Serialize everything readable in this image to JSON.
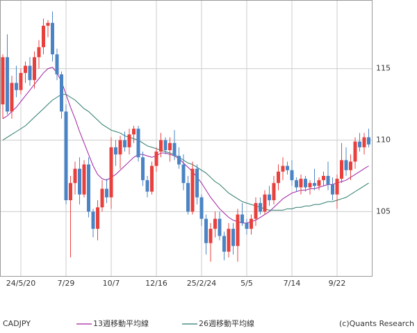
{
  "chart_data": {
    "type": "candlestick",
    "label": "CADJPY",
    "credit": "(c)Quants Research",
    "categories": [
      null,
      null,
      null,
      null,
      "24/5/20",
      null,
      null,
      null,
      null,
      null,
      null,
      null,
      null,
      null,
      "7/29",
      null,
      null,
      null,
      null,
      null,
      null,
      null,
      null,
      null,
      "10/7",
      null,
      null,
      null,
      null,
      null,
      null,
      null,
      null,
      null,
      "12/16",
      null,
      null,
      null,
      null,
      null,
      null,
      null,
      null,
      null,
      "25/2/24",
      null,
      null,
      null,
      null,
      null,
      null,
      null,
      null,
      null,
      "5/5",
      null,
      null,
      null,
      null,
      null,
      null,
      null,
      null,
      null,
      "7/14",
      null,
      null,
      null,
      null,
      null,
      null,
      null,
      null,
      null,
      "9/22",
      null,
      null,
      null,
      null,
      null,
      null,
      null
    ],
    "open": [
      112.5,
      115.8,
      112.0,
      114.0,
      113.5,
      114.7,
      115.2,
      114.2,
      115.8,
      116.5,
      118.0,
      118.2,
      116.0,
      114.6,
      112.0,
      105.8,
      107.0,
      108.0,
      106.2,
      108.3,
      105.0,
      103.8,
      105.3,
      106.6,
      106.0,
      109.5,
      109.0,
      110.0,
      109.5,
      110.4,
      110.8,
      108.8,
      107.2,
      106.4,
      108.2,
      109.2,
      110.0,
      109.3,
      109.8,
      108.9,
      108.3,
      107.0,
      105.0,
      108.0,
      106.0,
      104.5,
      102.8,
      103.8,
      104.5,
      103.3,
      102.2,
      103.8,
      102.6,
      104.8,
      104.2,
      103.8,
      104.5,
      105.6,
      105.0,
      106.2,
      105.8,
      107.0,
      107.8,
      108.2,
      107.9,
      107.2,
      106.7,
      107.3,
      106.7,
      107.0,
      106.8,
      107.2,
      107.5,
      106.9,
      106.2,
      107.3,
      108.6,
      107.9,
      108.5,
      109.9,
      109.5,
      110.2
    ],
    "high": [
      116.0,
      117.4,
      114.5,
      115.2,
      115.0,
      115.5,
      115.8,
      116.2,
      117.0,
      118.5,
      118.4,
      119.0,
      116.4,
      114.8,
      112.5,
      107.5,
      108.5,
      108.8,
      108.6,
      108.8,
      105.2,
      105.8,
      107.2,
      107.3,
      110.2,
      110.0,
      110.3,
      110.6,
      110.8,
      111.0,
      111.0,
      109.2,
      107.5,
      108.5,
      109.5,
      110.5,
      110.2,
      110.2,
      110.7,
      109.5,
      109.0,
      107.5,
      108.5,
      108.3,
      106.2,
      104.8,
      104.2,
      105.0,
      105.0,
      103.6,
      104.2,
      104.2,
      105.2,
      105.6,
      104.5,
      104.8,
      106.0,
      106.0,
      106.5,
      106.8,
      107.5,
      108.3,
      108.8,
      108.5,
      108.6,
      107.4,
      107.6,
      107.5,
      107.2,
      108.0,
      107.4,
      107.8,
      108.5,
      107.4,
      107.6,
      109.8,
      109.5,
      109.0,
      110.2,
      110.5,
      110.5,
      110.8
    ],
    "low": [
      111.5,
      111.8,
      111.5,
      113.0,
      113.2,
      114.0,
      113.8,
      113.6,
      115.0,
      116.0,
      117.2,
      115.5,
      114.2,
      111.5,
      105.5,
      101.8,
      106.2,
      105.5,
      106.0,
      104.6,
      103.2,
      103.0,
      105.0,
      105.6,
      105.2,
      108.2,
      108.0,
      109.2,
      109.0,
      109.8,
      108.5,
      106.8,
      106.0,
      106.2,
      107.8,
      108.8,
      109.0,
      108.5,
      108.6,
      108.0,
      106.5,
      104.8,
      104.8,
      105.5,
      104.0,
      102.0,
      101.5,
      103.2,
      103.0,
      101.6,
      101.8,
      102.0,
      101.5,
      104.0,
      103.4,
      103.4,
      104.0,
      104.8,
      104.8,
      105.4,
      105.5,
      106.5,
      107.2,
      107.6,
      106.8,
      106.4,
      106.2,
      106.4,
      106.2,
      106.5,
      106.5,
      106.8,
      106.5,
      105.8,
      105.2,
      107.0,
      107.5,
      107.2,
      108.0,
      109.2,
      109.0,
      109.5
    ],
    "close": [
      115.8,
      112.0,
      114.0,
      113.5,
      114.7,
      115.2,
      114.2,
      115.8,
      116.5,
      118.0,
      118.2,
      116.0,
      114.6,
      112.0,
      105.8,
      107.0,
      108.0,
      106.2,
      108.3,
      105.0,
      103.8,
      105.3,
      106.6,
      106.0,
      109.5,
      109.0,
      110.0,
      109.5,
      110.4,
      110.8,
      108.8,
      107.2,
      106.4,
      108.2,
      109.2,
      110.0,
      109.3,
      109.8,
      108.9,
      108.3,
      107.0,
      105.0,
      108.0,
      106.0,
      104.5,
      102.8,
      103.8,
      104.5,
      103.3,
      102.2,
      103.8,
      102.6,
      104.8,
      104.2,
      103.8,
      104.5,
      105.6,
      105.0,
      106.2,
      105.8,
      107.0,
      107.8,
      108.2,
      107.9,
      107.2,
      106.7,
      107.3,
      106.7,
      107.0,
      106.8,
      107.2,
      107.5,
      106.9,
      106.2,
      107.3,
      108.6,
      107.9,
      108.5,
      109.9,
      109.5,
      110.2,
      109.7
    ],
    "up_color": "#e8403c",
    "down_color": "#4a84c4",
    "series": [
      {
        "name": "13週移動平均線",
        "color": "#a020a0",
        "values": [
          111.5,
          111.7,
          112.0,
          112.3,
          112.7,
          113.1,
          113.5,
          113.9,
          114.3,
          114.7,
          115.0,
          115.1,
          114.7,
          114.1,
          113.2,
          112.3,
          111.5,
          110.6,
          109.8,
          109.0,
          108.2,
          107.6,
          107.3,
          107.2,
          107.4,
          107.6,
          107.9,
          108.2,
          108.5,
          108.8,
          109.0,
          109.0,
          108.9,
          108.8,
          108.9,
          109.1,
          109.1,
          109.0,
          108.9,
          108.7,
          108.4,
          108.1,
          107.8,
          107.4,
          107.0,
          106.5,
          106.0,
          105.6,
          105.2,
          104.9,
          104.6,
          104.4,
          104.3,
          104.2,
          104.2,
          104.3,
          104.4,
          104.6,
          104.8,
          105.0,
          105.3,
          105.6,
          105.9,
          106.1,
          106.3,
          106.4,
          106.5,
          106.5,
          106.6,
          106.6,
          106.7,
          106.8,
          106.9,
          106.9,
          107.0,
          107.1,
          107.2,
          107.4,
          107.6,
          107.8,
          108.0,
          108.2
        ]
      },
      {
        "name": "26週移動平均線",
        "color": "#2a7a6a",
        "values": [
          110.0,
          110.2,
          110.4,
          110.6,
          110.8,
          111.0,
          111.3,
          111.6,
          111.9,
          112.2,
          112.5,
          112.8,
          113.0,
          113.2,
          113.2,
          113.0,
          112.8,
          112.5,
          112.2,
          112.0,
          111.7,
          111.4,
          111.1,
          110.9,
          110.7,
          110.6,
          110.5,
          110.3,
          110.2,
          110.1,
          110.0,
          109.8,
          109.6,
          109.5,
          109.4,
          109.3,
          109.2,
          109.1,
          109.0,
          108.8,
          108.6,
          108.4,
          108.3,
          108.1,
          107.9,
          107.7,
          107.4,
          107.1,
          106.9,
          106.6,
          106.3,
          106.1,
          105.9,
          105.7,
          105.6,
          105.5,
          105.4,
          105.3,
          105.2,
          105.1,
          105.1,
          105.1,
          105.1,
          105.2,
          105.2,
          105.3,
          105.3,
          105.4,
          105.4,
          105.5,
          105.5,
          105.6,
          105.7,
          105.7,
          105.8,
          105.9,
          106.0,
          106.2,
          106.4,
          106.6,
          106.8,
          107.0
        ]
      }
    ],
    "ylim": [
      100.5,
      119.8
    ],
    "yticks": [
      105,
      110,
      115
    ],
    "grid": true
  }
}
